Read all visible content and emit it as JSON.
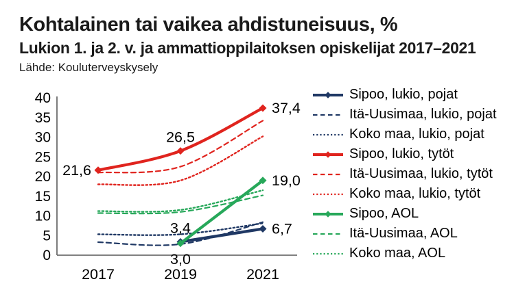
{
  "header": {
    "title": "Kohtalainen tai vaikea ahdistuneisuus, %",
    "subtitle": "Lukion 1. ja 2. v. ja ammattioppilaitoksen opiskelijat 2017–2021",
    "source": "Lähde: Kouluterveyskysely"
  },
  "colors": {
    "navy": "#1F3864",
    "red": "#E0241E",
    "green": "#27A85A",
    "axis": "#6e6e6e",
    "text": "#000000"
  },
  "chart_data": {
    "type": "line",
    "title": "Kohtalainen tai vaikea ahdistuneisuus, %",
    "subtitle": "Lukion 1. ja 2. v. ja ammattioppilaitoksen opiskelijat 2017–2021",
    "x": [
      "2017",
      "2019",
      "2021"
    ],
    "xlabel": "",
    "ylabel": "",
    "ylim": [
      0,
      40
    ],
    "yticks": [
      0,
      5,
      10,
      15,
      20,
      25,
      30,
      35,
      40
    ],
    "grid": false,
    "legend_position": "right",
    "decimal_separator": ",",
    "series": [
      {
        "name": "Sipoo, lukio, pojat",
        "color": "#1F3864",
        "style": "solid",
        "marker": "diamond",
        "values": [
          null,
          3.4,
          6.7
        ]
      },
      {
        "name": "Itä-Uusimaa, lukio, pojat",
        "color": "#1F3864",
        "style": "dashed",
        "marker": "none",
        "values": [
          3.3,
          2.8,
          8.4
        ]
      },
      {
        "name": "Koko maa, lukio, pojat",
        "color": "#1F3864",
        "style": "dotted",
        "marker": "none",
        "values": [
          5.3,
          5.3,
          8.1
        ]
      },
      {
        "name": "Sipoo, lukio, tytöt",
        "color": "#E0241E",
        "style": "solid",
        "marker": "diamond",
        "values": [
          21.6,
          26.5,
          37.4
        ]
      },
      {
        "name": "Itä-Uusimaa, lukio, tytöt",
        "color": "#E0241E",
        "style": "dashed",
        "marker": "none",
        "values": [
          21.0,
          22.5,
          34.2
        ]
      },
      {
        "name": "Koko maa, lukio, tytöt",
        "color": "#E0241E",
        "style": "dotted",
        "marker": "none",
        "values": [
          18.0,
          19.0,
          30.2
        ]
      },
      {
        "name": "Sipoo, AOL",
        "color": "#27A85A",
        "style": "solid",
        "marker": "diamond",
        "values": [
          null,
          3.0,
          19.0
        ]
      },
      {
        "name": "Itä-Uusimaa, AOL",
        "color": "#27A85A",
        "style": "dashed",
        "marker": "none",
        "values": [
          10.7,
          11.0,
          15.2
        ]
      },
      {
        "name": "Koko maa, AOL",
        "color": "#27A85A",
        "style": "dotted",
        "marker": "none",
        "values": [
          11.2,
          11.5,
          16.5
        ]
      }
    ],
    "data_labels": [
      {
        "series": 3,
        "point": 0,
        "text": "21,6",
        "placement": "left"
      },
      {
        "series": 3,
        "point": 1,
        "text": "26,5",
        "placement": "above"
      },
      {
        "series": 3,
        "point": 2,
        "text": "37,4",
        "placement": "right"
      },
      {
        "series": 0,
        "point": 1,
        "text": "3,4",
        "placement": "above"
      },
      {
        "series": 0,
        "point": 2,
        "text": "6,7",
        "placement": "right"
      },
      {
        "series": 6,
        "point": 1,
        "text": "3,0",
        "placement": "below"
      },
      {
        "series": 6,
        "point": 2,
        "text": "19,0",
        "placement": "right"
      }
    ]
  }
}
